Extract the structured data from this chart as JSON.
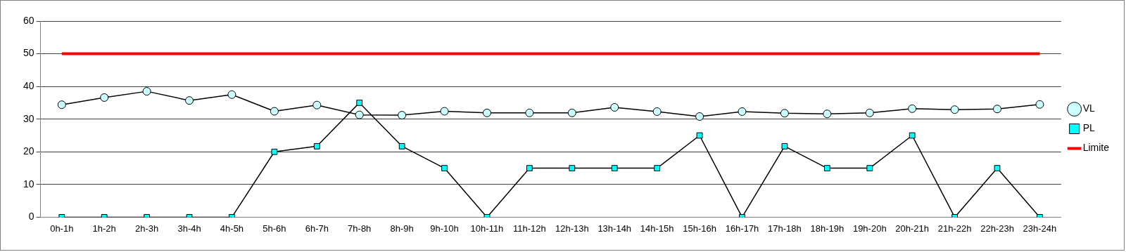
{
  "chart_data": {
    "type": "line",
    "categories": [
      "0h-1h",
      "1h-2h",
      "2h-3h",
      "3h-4h",
      "4h-5h",
      "5h-6h",
      "6h-7h",
      "7h-8h",
      "8h-9h",
      "9h-10h",
      "10h-11h",
      "11h-12h",
      "12h-13h",
      "13h-14h",
      "14h-15h",
      "15h-16h",
      "16h-17h",
      "17h-18h",
      "18h-19h",
      "19h-20h",
      "20h-21h",
      "21h-22h",
      "22h-23h",
      "23h-24h"
    ],
    "series": [
      {
        "name": "VL",
        "color": "#ccffff",
        "marker": "circle",
        "values": [
          34.4,
          36.6,
          38.5,
          35.7,
          37.5,
          32.4,
          34.3,
          31.3,
          31.2,
          32.4,
          31.9,
          31.9,
          31.9,
          33.6,
          32.3,
          30.8,
          32.3,
          31.8,
          31.6,
          31.9,
          33.2,
          32.9,
          33.1,
          34.5
        ]
      },
      {
        "name": "PL",
        "color": "#00ffff",
        "marker": "square",
        "values": [
          0,
          0,
          0,
          0,
          0,
          20,
          21.7,
          35,
          21.7,
          15,
          0,
          15,
          15,
          15,
          15,
          25,
          0,
          21.7,
          15,
          15,
          25,
          0,
          15,
          0
        ]
      },
      {
        "name": "Limite",
        "color": "#ff0000",
        "marker": "none",
        "values": [
          50,
          50,
          50,
          50,
          50,
          50,
          50,
          50,
          50,
          50,
          50,
          50,
          50,
          50,
          50,
          50,
          50,
          50,
          50,
          50,
          50,
          50,
          50,
          50
        ]
      }
    ],
    "ylim": [
      0,
      60
    ],
    "yticks": [
      0,
      10,
      20,
      30,
      40,
      50,
      60
    ],
    "grid": "y",
    "legend": "right"
  }
}
